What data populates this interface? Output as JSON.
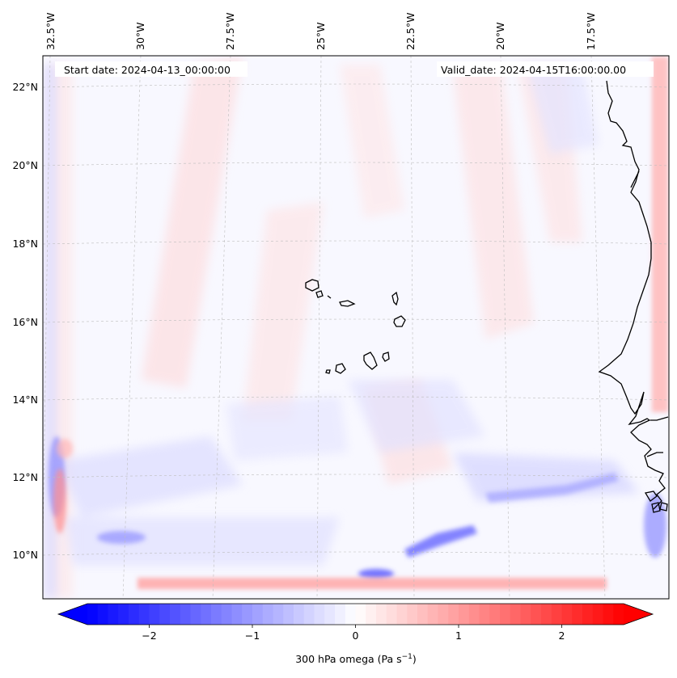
{
  "map": {
    "start_date": "Start date: 2024-04-13_00:00:00",
    "valid_date": "Valid_date: 2024-04-15T16:00:00.00",
    "lon_labels": [
      "32.5°W",
      "30°W",
      "27.5°W",
      "25°W",
      "22.5°W",
      "20°W",
      "17.5°W"
    ],
    "lat_labels": [
      "22°N",
      "20°N",
      "18°N",
      "16°N",
      "14°N",
      "12°N",
      "10°N"
    ],
    "gridlines": "dashed",
    "field": "300 hPa omega",
    "region": "Cape Verde and West African coast"
  },
  "colorbar": {
    "label_prefix": "300 hPa omega (Pa s",
    "label_exponent": "−1",
    "label_suffix": ")",
    "ticks": [
      "−2",
      "−1",
      "0",
      "1",
      "2"
    ],
    "tick_values": [
      -2,
      -1,
      0,
      1,
      2
    ],
    "range": [
      -2.6,
      2.6
    ],
    "colormap": "bwr",
    "extend": "both",
    "negative_color": "#0000ff",
    "zero_color": "#ffffff",
    "positive_color": "#ff0000"
  },
  "colors": {
    "coastline": "#000000",
    "gridline": "#bdbdbd"
  }
}
